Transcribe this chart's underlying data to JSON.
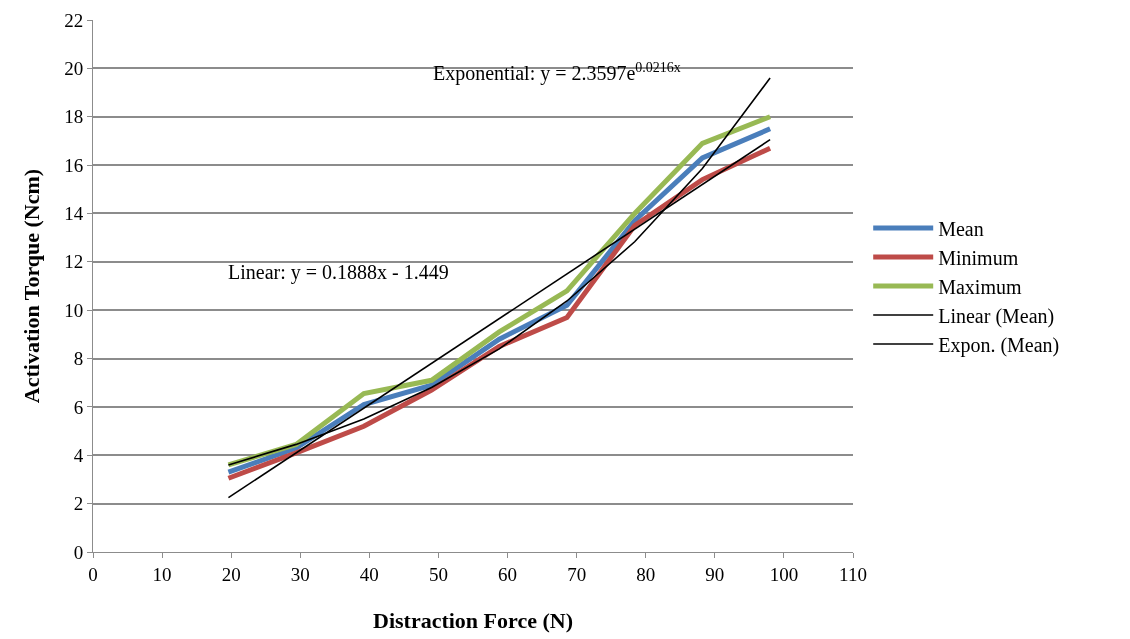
{
  "chart_data": {
    "type": "line",
    "xlabel": "Distraction Force (N)",
    "ylabel": "Activation Torque (Ncm)",
    "x": [
      19.6,
      29.4,
      39.2,
      49,
      58.8,
      68.6,
      78.4,
      88.2,
      98
    ],
    "series": [
      {
        "name": "Mean",
        "color": "#4a7ebb",
        "values": [
          3.3,
          4.3,
          6.1,
          6.9,
          8.8,
          10.2,
          13.7,
          16.3,
          17.5
        ]
      },
      {
        "name": "Minimum",
        "color": "#be4b48",
        "values": [
          3.05,
          4.1,
          5.2,
          6.7,
          8.5,
          9.7,
          13.5,
          15.4,
          16.7
        ]
      },
      {
        "name": "Maximum",
        "color": "#98b954",
        "values": [
          3.6,
          4.45,
          6.55,
          7.1,
          9.1,
          10.8,
          14.0,
          16.9,
          18.0
        ]
      },
      {
        "name": "Linear (Mean)",
        "color": "#000000",
        "x": [
          19.6,
          98
        ],
        "values": [
          2.25,
          17.05
        ]
      },
      {
        "name": "Expon. (Mean)",
        "color": "#000000",
        "values": [
          3.6,
          4.45,
          5.5,
          6.8,
          8.4,
          10.38,
          12.83,
          15.86,
          19.6
        ]
      }
    ],
    "annotations": [
      "Linear: y = 0.1888x - 1.449",
      "Exponential: y = 2.3597e$^{0.0216x}$"
    ],
    "xlim": [
      0,
      110
    ],
    "xticks": [
      0,
      10,
      20,
      30,
      40,
      50,
      60,
      70,
      80,
      90,
      100,
      110
    ],
    "ylim": [
      0,
      22
    ],
    "yticks": [
      0,
      2,
      4,
      6,
      8,
      10,
      12,
      14,
      16,
      18,
      20,
      22
    ],
    "grid": "y",
    "legend": "right",
    "marker": "none",
    "line_style": "solid"
  }
}
